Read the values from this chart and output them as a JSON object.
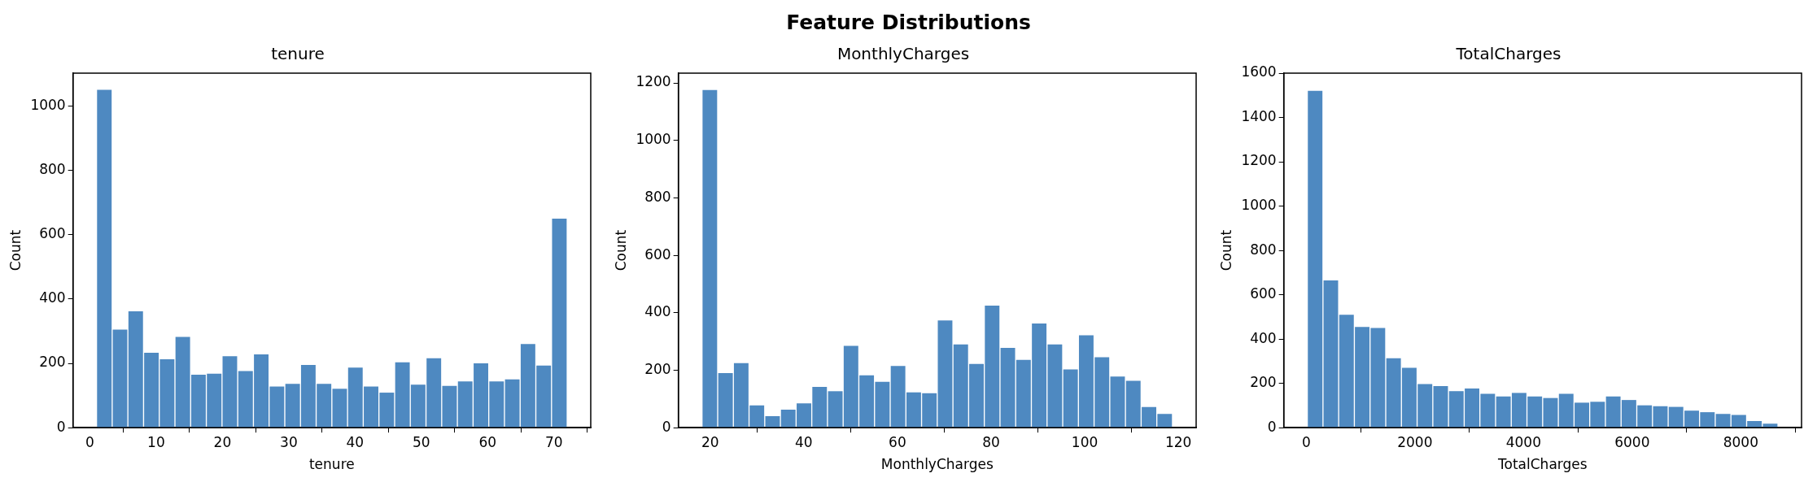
{
  "chart_data": [
    {
      "type": "histogram",
      "title": "tenure",
      "xlabel": "tenure",
      "ylabel": "Count",
      "annotations": [
        "Feature Distributions"
      ],
      "color": "#4e89c1",
      "bins": [
        1,
        3.37,
        5.73,
        8.1,
        10.47,
        12.83,
        15.2,
        17.57,
        19.93,
        22.3,
        24.67,
        27.03,
        29.4,
        31.77,
        34.13,
        36.5,
        38.87,
        41.23,
        43.6,
        45.97,
        48.33,
        50.7,
        53.07,
        55.43,
        57.8,
        60.17,
        62.53,
        64.9,
        67.27,
        69.63,
        72
      ],
      "values": [
        1050,
        305,
        362,
        233,
        213,
        282,
        165,
        168,
        222,
        176,
        228,
        128,
        136,
        195,
        136,
        121,
        187,
        128,
        109,
        203,
        134,
        216,
        130,
        144,
        200,
        144,
        150,
        260,
        193,
        650
      ],
      "xlim": [
        -2.55,
        75.55
      ],
      "xticks": [
        0,
        10,
        20,
        30,
        40,
        50,
        60,
        70
      ],
      "ylim": [
        0,
        1102
      ],
      "yticks": [
        0,
        200,
        400,
        600,
        800,
        1000
      ],
      "grid": false
    },
    {
      "type": "histogram",
      "title": "MonthlyCharges",
      "xlabel": "MonthlyCharges",
      "ylabel": "Count",
      "color": "#4e89c1",
      "bins": [
        18.25,
        21.6,
        24.95,
        28.3,
        31.65,
        35,
        38.35,
        41.7,
        45.05,
        48.4,
        51.75,
        55.1,
        58.45,
        61.8,
        65.15,
        68.5,
        71.85,
        75.2,
        78.55,
        81.9,
        85.25,
        88.6,
        91.95,
        95.3,
        98.65,
        102,
        105.35,
        108.7,
        112.05,
        115.4,
        118.75
      ],
      "values": [
        1175,
        190,
        225,
        78,
        40,
        63,
        85,
        142,
        127,
        285,
        182,
        160,
        215,
        123,
        120,
        373,
        290,
        222,
        425,
        278,
        236,
        363,
        290,
        203,
        322,
        245,
        178,
        163,
        72,
        48
      ],
      "xlim": [
        13.2,
        123.8
      ],
      "xticks": [
        20,
        40,
        60,
        80,
        100,
        120
      ],
      "ylim": [
        0,
        1234
      ],
      "yticks": [
        0,
        200,
        400,
        600,
        800,
        1000,
        1200
      ],
      "grid": false
    },
    {
      "type": "histogram",
      "title": "TotalCharges",
      "xlabel": "TotalCharges",
      "ylabel": "Count",
      "color": "#4e89c1",
      "bins": [
        18.8,
        307.7,
        596.5,
        885.4,
        1174.3,
        1463.1,
        1752,
        2040.9,
        2329.7,
        2618.6,
        2907.5,
        3196.3,
        3485.2,
        3774.1,
        4062.9,
        4351.8,
        4640.7,
        4929.5,
        5218.4,
        5507.3,
        5796.1,
        6085,
        6373.9,
        6662.7,
        6951.6,
        7240.5,
        7529.3,
        7818.2,
        8107.1,
        8395.9,
        8684.8
      ],
      "values": [
        1520,
        665,
        510,
        455,
        450,
        313,
        270,
        197,
        188,
        165,
        177,
        153,
        141,
        157,
        141,
        134,
        153,
        113,
        117,
        141,
        125,
        101,
        97,
        94,
        77,
        70,
        62,
        58,
        30,
        18
      ],
      "xlim": [
        -414.5,
        9118.1
      ],
      "xticks": [
        0,
        2000,
        4000,
        6000,
        8000
      ],
      "ylim": [
        0,
        1600
      ],
      "yticks": [
        0,
        200,
        400,
        600,
        800,
        1000,
        1200,
        1400,
        1600
      ],
      "grid": false
    }
  ]
}
